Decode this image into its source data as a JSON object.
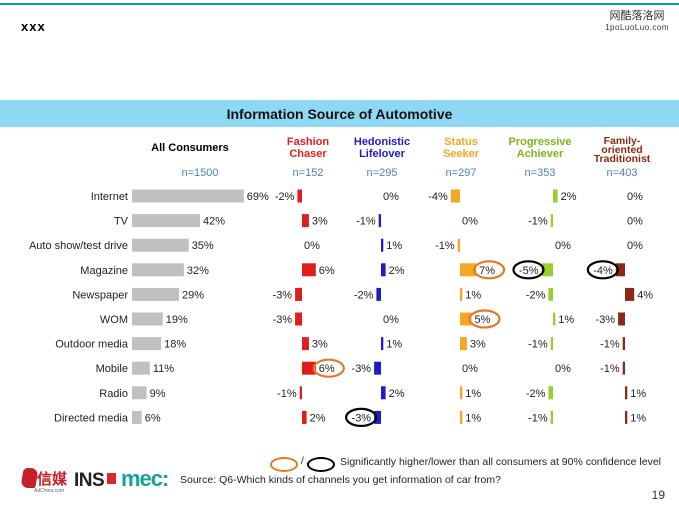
{
  "header": {
    "label": "xxx"
  },
  "watermark": {
    "line1": "网酷落洛网",
    "line2": "1poLuoLuo.com"
  },
  "title": "Information Source of Automotive",
  "chart_data": {
    "type": "bar",
    "title": "Information Source of Automotive",
    "categories": [
      "Internet",
      "TV",
      "Auto show/test drive",
      "Magazine",
      "Newspaper",
      "WOM",
      "Outdoor media",
      "Mobile",
      "Radio",
      "Directed media"
    ],
    "all_consumers": {
      "name": "All Consumers",
      "n": "n=1500",
      "values": [
        69,
        42,
        35,
        32,
        29,
        19,
        18,
        11,
        9,
        6
      ],
      "labels": [
        "69%",
        "42%",
        "35%",
        "32%",
        "29%",
        "19%",
        "18%",
        "11%",
        "9%",
        "6%"
      ],
      "color": "#c0c0c0"
    },
    "series": [
      {
        "name": "Fashion Chaser",
        "n": "n=152",
        "color": "#e01e1e",
        "values": [
          -2,
          3,
          0,
          6,
          -3,
          -3,
          3,
          6,
          -1,
          2
        ],
        "labels": [
          "-2%",
          "3%",
          "0%",
          "6%",
          "-3%",
          "-3%",
          "3%",
          "6%",
          "-1%",
          "2%"
        ],
        "circles": [
          null,
          null,
          null,
          null,
          null,
          null,
          null,
          "higher",
          null,
          null
        ]
      },
      {
        "name": "Hedonistic Lifelover",
        "n": "n=295",
        "color": "#1c1cc8",
        "values": [
          0,
          -1,
          1,
          2,
          -2,
          0,
          1,
          -3,
          2,
          -3
        ],
        "labels": [
          "0%",
          "-1%",
          "1%",
          "2%",
          "-2%",
          "0%",
          "1%",
          "-3%",
          "2%",
          "-3%"
        ],
        "circles": [
          null,
          null,
          null,
          null,
          null,
          null,
          null,
          null,
          null,
          "lower"
        ]
      },
      {
        "name": "Status Seeker",
        "n": "n=297",
        "color": "#f5a623",
        "values": [
          -4,
          0,
          -1,
          7,
          1,
          5,
          3,
          0,
          1,
          1
        ],
        "labels": [
          "-4%",
          "0%",
          "-1%",
          "7%",
          "1%",
          "5%",
          "3%",
          "0%",
          "1%",
          "1%"
        ],
        "circles": [
          null,
          null,
          null,
          "higher",
          null,
          "higher",
          null,
          null,
          null,
          null
        ]
      },
      {
        "name": "Progressive Achiever",
        "n": "n=353",
        "color": "#9acd32",
        "values": [
          2,
          -1,
          0,
          -5,
          -2,
          1,
          -1,
          0,
          -2,
          -1
        ],
        "labels": [
          "2%",
          "-1%",
          "0%",
          "-5%",
          "-2%",
          "1%",
          "-1%",
          "0%",
          "-2%",
          "-1%"
        ],
        "circles": [
          null,
          null,
          null,
          "lower",
          null,
          null,
          null,
          null,
          null,
          null
        ]
      },
      {
        "name": "Family-oriented Traditionist",
        "n": "n=403",
        "color": "#8b2a12",
        "values": [
          0,
          0,
          0,
          -4,
          4,
          -3,
          -1,
          -1,
          1,
          1
        ],
        "labels": [
          "0%",
          "0%",
          "0%",
          "-4%",
          "4%",
          "-3%",
          "-1%",
          "-1%",
          "1%",
          "1%"
        ],
        "circles": [
          null,
          null,
          null,
          "lower",
          null,
          null,
          null,
          null,
          null,
          null
        ]
      }
    ],
    "header_lines": {
      "all": [
        "All Consumers"
      ],
      "s0": [
        "Fashion",
        "Chaser"
      ],
      "s1": [
        "Hedonistic",
        "Lifelover"
      ],
      "s2": [
        "Status",
        "Seeker"
      ],
      "s3": [
        "Progressive",
        "Achiever"
      ],
      "s4": [
        "Family-",
        "oriented",
        "Traditionist"
      ]
    },
    "header_colors": {
      "all": "#000000",
      "s0": "#e01e1e",
      "s1": "#1c1cc8",
      "s2": "#f5a623",
      "s3": "#7cb518",
      "s4": "#8b2a12"
    },
    "n_color": "#4a7fc8"
  },
  "legend": {
    "slash": "/",
    "text": "Significantly higher/lower than all consumers at 90% confidence level",
    "higher_color": "#e87722",
    "lower_color": "#000000"
  },
  "source": "Source: Q6-Which kinds of channels you get information of car from?",
  "page_number": "19",
  "logos": {
    "logo1_text": "信媒",
    "logo1_sub": "AdChina.com",
    "ins": "INS",
    "mec": "mec:"
  }
}
